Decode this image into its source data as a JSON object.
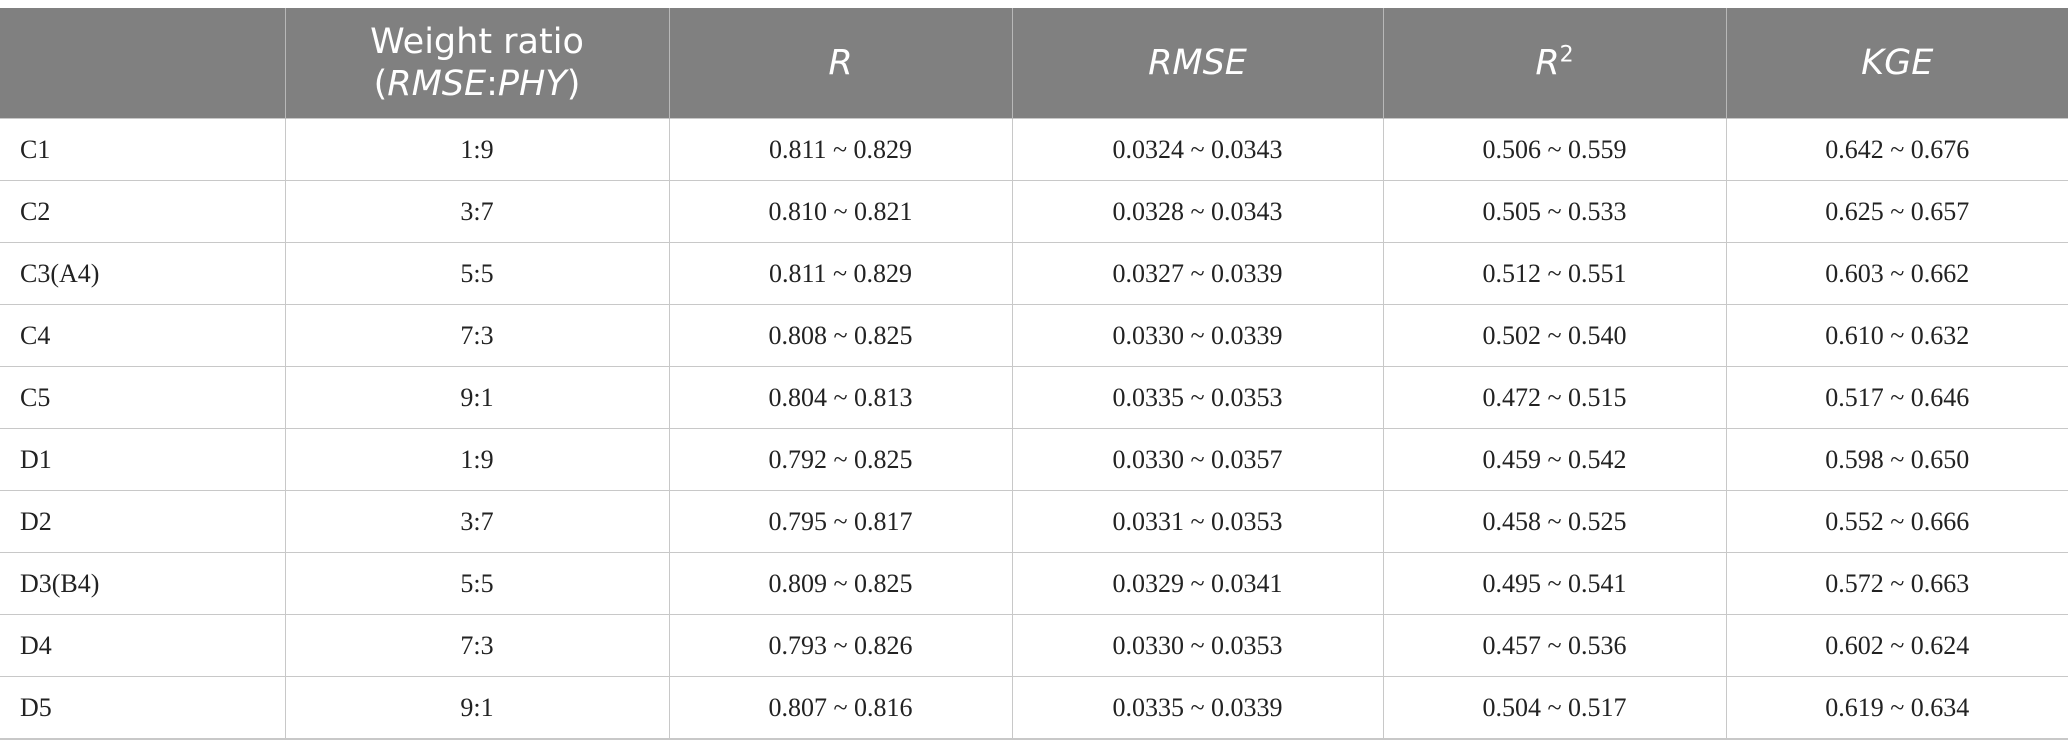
{
  "table": {
    "headers": [
      {
        "text": "",
        "italic": false
      },
      {
        "line1": "Weight ratio",
        "line2_open": "(",
        "line2_a": "RMSE",
        "line2_sep": ":",
        "line2_b": "PHY",
        "line2_close": ")"
      },
      {
        "text": "R",
        "italic": true
      },
      {
        "text": "RMSE",
        "italic": true
      },
      {
        "text": "R",
        "sup": "2",
        "italic": true
      },
      {
        "text": "KGE",
        "italic": true
      }
    ],
    "rows": [
      [
        "C1",
        "1:9",
        "0.811 ~ 0.829",
        "0.0324 ~ 0.0343",
        "0.506 ~ 0.559",
        "0.642 ~ 0.676"
      ],
      [
        "C2",
        "3:7",
        "0.810 ~ 0.821",
        "0.0328 ~ 0.0343",
        "0.505 ~ 0.533",
        "0.625 ~ 0.657"
      ],
      [
        "C3(A4)",
        "5:5",
        "0.811 ~ 0.829",
        "0.0327 ~ 0.0339",
        "0.512 ~ 0.551",
        "0.603 ~ 0.662"
      ],
      [
        "C4",
        "7:3",
        "0.808 ~ 0.825",
        "0.0330 ~ 0.0339",
        "0.502 ~ 0.540",
        "0.610 ~ 0.632"
      ],
      [
        "C5",
        "9:1",
        "0.804 ~ 0.813",
        "0.0335 ~ 0.0353",
        "0.472 ~ 0.515",
        "0.517 ~ 0.646"
      ],
      [
        "D1",
        "1:9",
        "0.792 ~ 0.825",
        "0.0330 ~ 0.0357",
        "0.459 ~ 0.542",
        "0.598 ~ 0.650"
      ],
      [
        "D2",
        "3:7",
        "0.795 ~ 0.817",
        "0.0331 ~ 0.0353",
        "0.458 ~ 0.525",
        "0.552 ~ 0.666"
      ],
      [
        "D3(B4)",
        "5:5",
        "0.809 ~ 0.825",
        "0.0329 ~ 0.0341",
        "0.495 ~ 0.541",
        "0.572 ~ 0.663"
      ],
      [
        "D4",
        "7:3",
        "0.793 ~ 0.826",
        "0.0330 ~ 0.0353",
        "0.457 ~ 0.536",
        "0.602 ~ 0.624"
      ],
      [
        "D5",
        "9:1",
        "0.807 ~ 0.816",
        "0.0335 ~ 0.0339",
        "0.504 ~ 0.517",
        "0.619 ~ 0.634"
      ]
    ],
    "colors": {
      "header_bg": "#808080",
      "header_text": "#ffffff",
      "grid": "#c8c8c8"
    }
  }
}
